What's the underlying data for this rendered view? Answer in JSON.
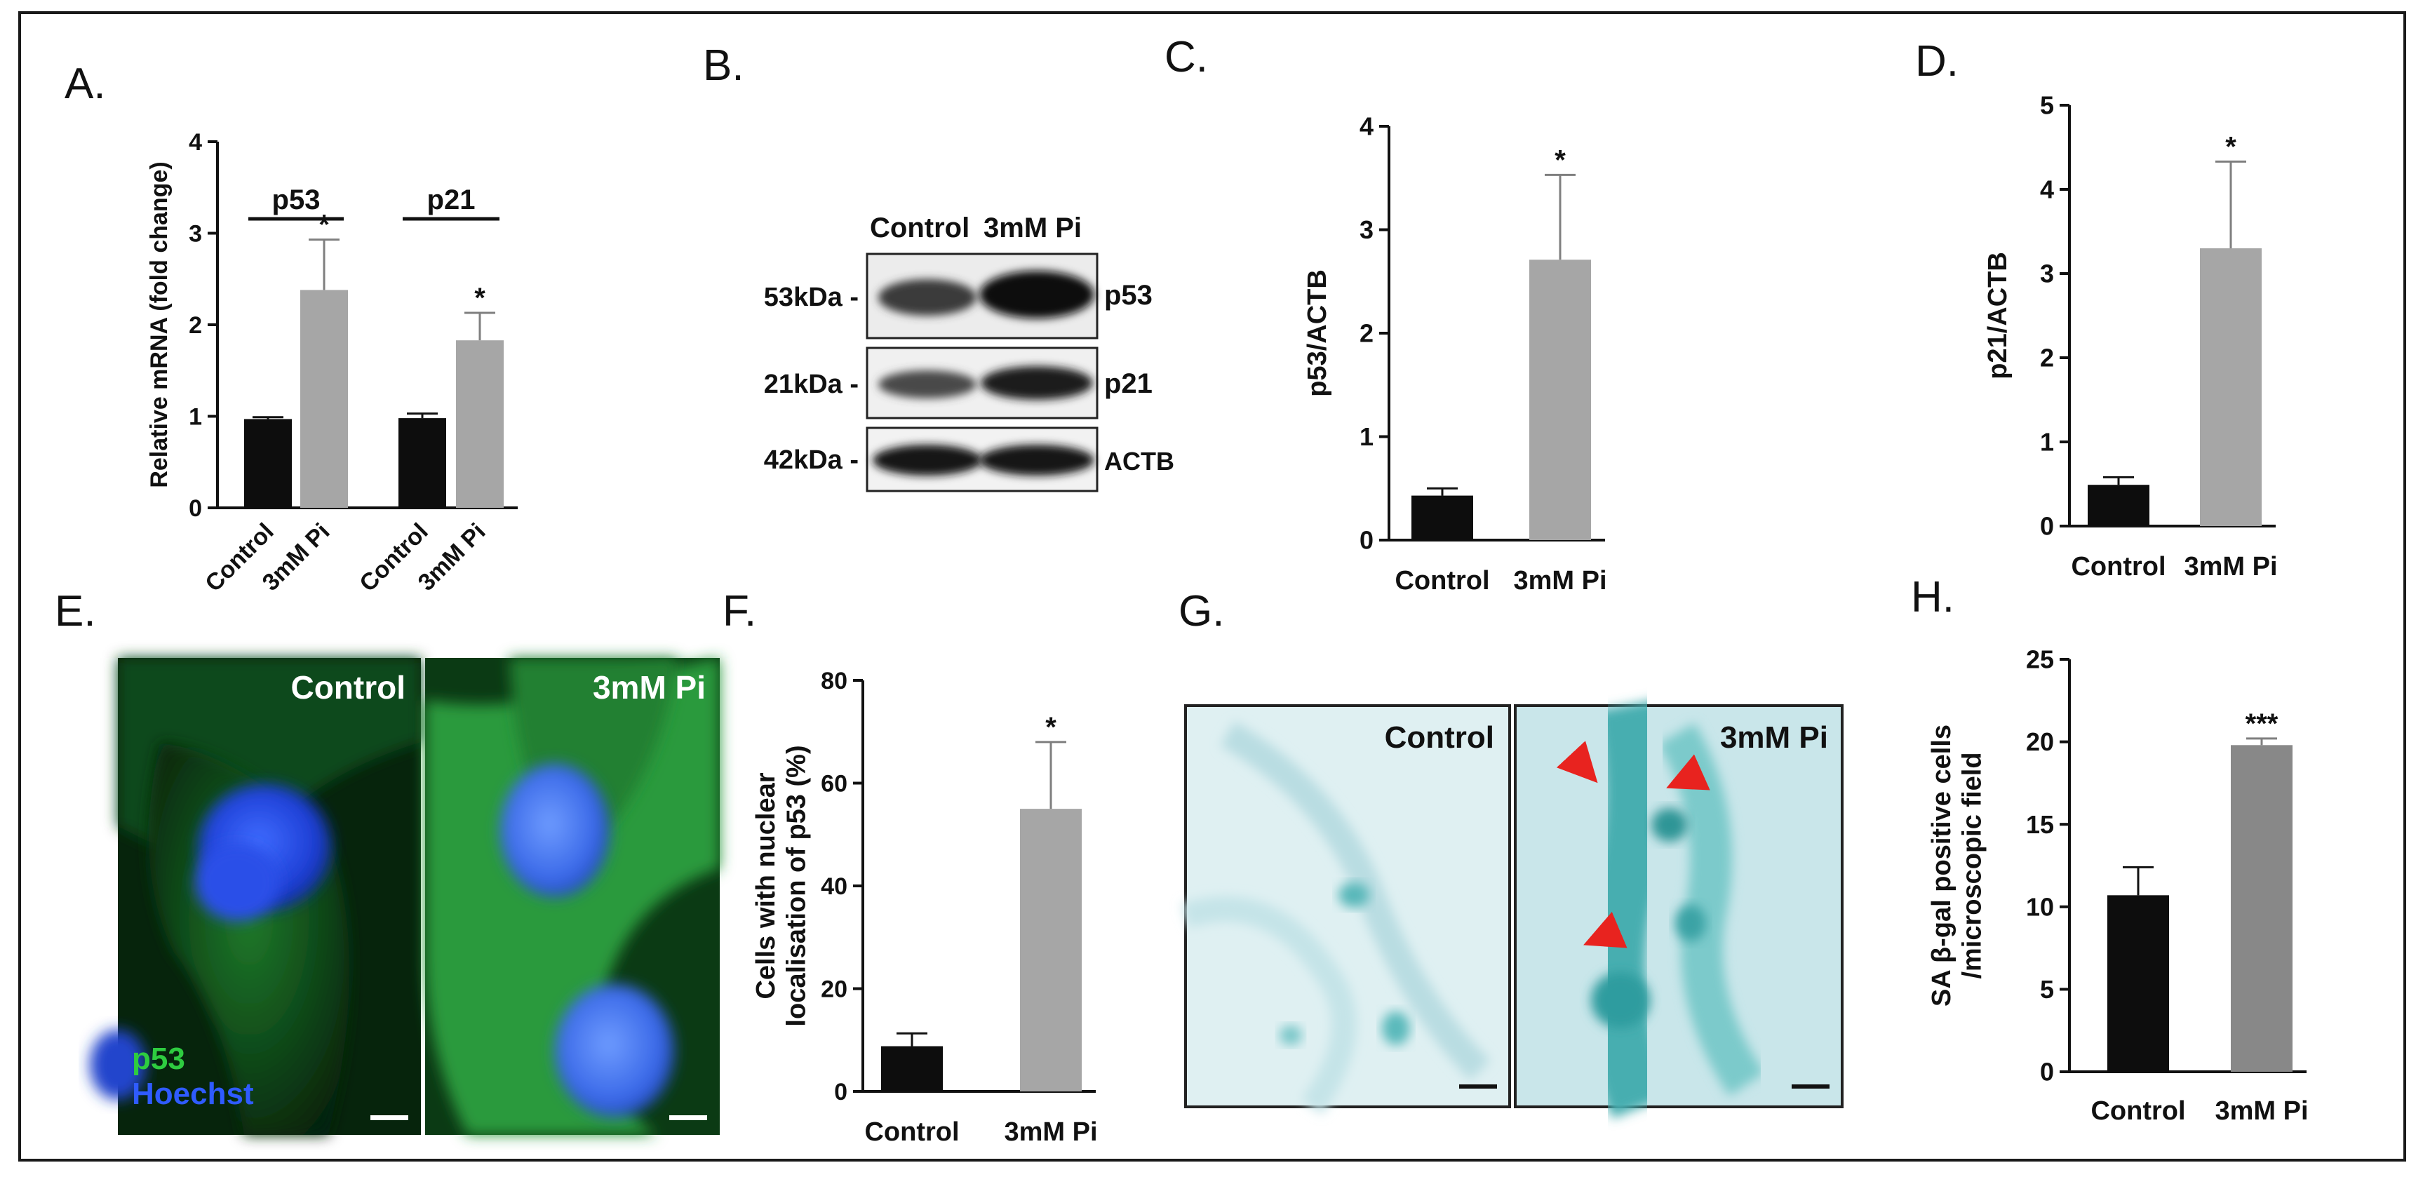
{
  "panels": {
    "A": "A.",
    "B": "B.",
    "C": "C.",
    "D": "D.",
    "E": "E.",
    "F": "F.",
    "G": "G.",
    "H": "H."
  },
  "colors": {
    "control": "#0d0d0d",
    "treated": "#a6a6a6",
    "treated_dark": "#888888",
    "error": "#7f7f7f",
    "text": "#111111",
    "arrow": "#e8231f",
    "p53_stain": "#2ecc40",
    "hoechst": "#2f5bff"
  },
  "blot": {
    "headers": [
      "Control",
      "3mM Pi"
    ],
    "rows": [
      {
        "mw": "53kDa -",
        "label": "p53"
      },
      {
        "mw": "21kDa -",
        "label": "p21"
      },
      {
        "mw": "42kDa -",
        "label": "ACTB"
      }
    ]
  },
  "micro_E": {
    "left_label": "Control",
    "right_label": "3mM Pi",
    "legend_p53": "p53",
    "legend_hoechst": "Hoechst"
  },
  "micro_G": {
    "left_label": "Control",
    "right_label": "3mM Pi"
  },
  "chart_data": [
    {
      "id": "A",
      "type": "bar",
      "ylabel": "Relative mRNA (fold change)",
      "ylim": [
        0,
        4
      ],
      "yticks": [
        "0",
        "1",
        "2",
        "3",
        "4"
      ],
      "groups": [
        {
          "label": "p53",
          "categories": [
            "Control",
            "3mM Pi"
          ],
          "values": [
            0.97,
            2.38
          ],
          "errors": [
            0.02,
            0.55
          ],
          "sig": [
            "",
            "*"
          ]
        },
        {
          "label": "p21",
          "categories": [
            "Control",
            "3mM Pi"
          ],
          "values": [
            0.98,
            1.83
          ],
          "errors": [
            0.05,
            0.3
          ],
          "sig": [
            "",
            "*"
          ]
        }
      ]
    },
    {
      "id": "C",
      "type": "bar",
      "ylabel": "p53/ACTB",
      "ylim": [
        0,
        4
      ],
      "yticks": [
        "0",
        "1",
        "2",
        "3",
        "4"
      ],
      "categories": [
        "Control",
        "3mM Pi"
      ],
      "values": [
        0.43,
        2.71
      ],
      "errors": [
        0.07,
        0.82
      ],
      "sig": [
        "",
        "*"
      ]
    },
    {
      "id": "D",
      "type": "bar",
      "ylabel": "p21/ACTB",
      "ylim": [
        0,
        5
      ],
      "yticks": [
        "0",
        "1",
        "2",
        "3",
        "4",
        "5"
      ],
      "categories": [
        "Control",
        "3mM Pi"
      ],
      "values": [
        0.49,
        3.3
      ],
      "errors": [
        0.09,
        1.03
      ],
      "sig": [
        "",
        "*"
      ]
    },
    {
      "id": "F",
      "type": "bar",
      "ylabel": "Cells with nuclear localisation of p53 (%)",
      "ylabel_lines": [
        "Cells with nuclear",
        "localisation of p53 (%)"
      ],
      "ylim": [
        0,
        80
      ],
      "yticks": [
        "0",
        "20",
        "40",
        "60",
        "80"
      ],
      "categories": [
        "Control",
        "3mM Pi"
      ],
      "values": [
        8.8,
        55
      ],
      "errors": [
        2.5,
        13
      ],
      "sig": [
        "",
        "*"
      ]
    },
    {
      "id": "H",
      "type": "bar",
      "ylabel": "SA β-gal positive cells /microscopic field",
      "ylabel_lines": [
        "SA β-gal positive cells",
        "/microscopic field"
      ],
      "ylim": [
        0,
        25
      ],
      "yticks": [
        "0",
        "5",
        "10",
        "15",
        "20",
        "25"
      ],
      "categories": [
        "Control",
        "3mM Pi"
      ],
      "values": [
        10.7,
        19.8
      ],
      "errors": [
        1.7,
        0.4
      ],
      "sig": [
        "",
        "***"
      ]
    }
  ]
}
